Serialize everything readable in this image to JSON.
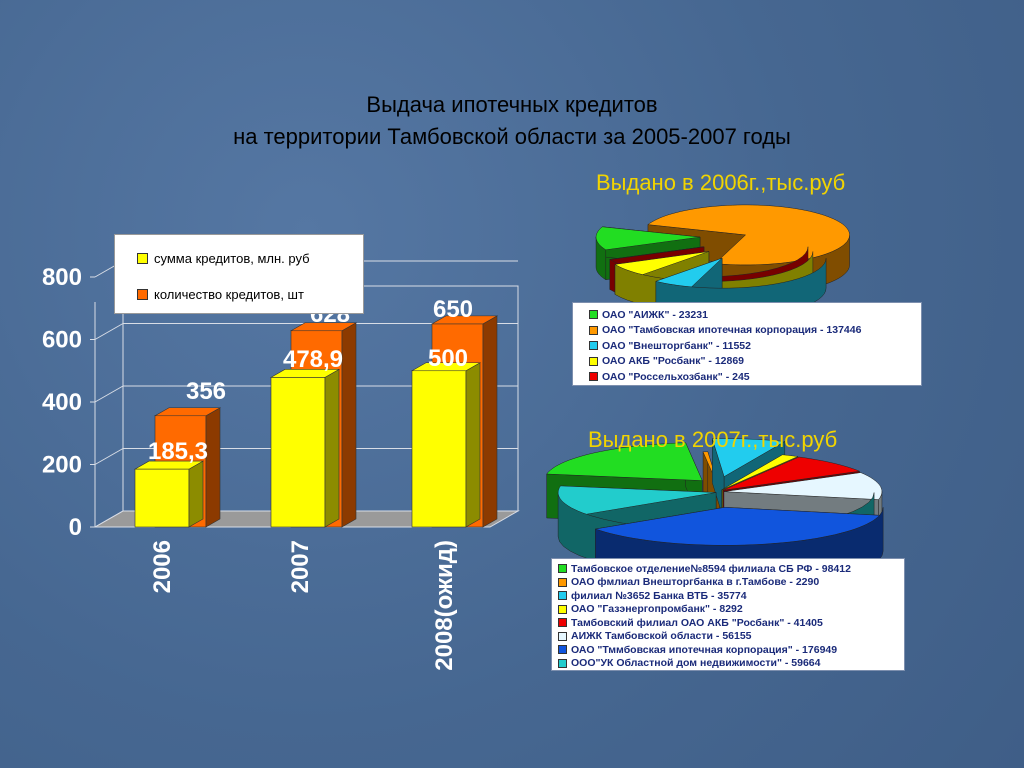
{
  "title": {
    "line1": "Выдача ипотечных кредитов",
    "line2": "на территории Тамбовской области за 2005-2007 годы"
  },
  "chart_data": [
    {
      "type": "bar",
      "categories": [
        "2006",
        "2007",
        "2008(ожид)"
      ],
      "series": [
        {
          "name": "сумма кредитов, млн. руб",
          "values": [
            185.3,
            478.9,
            500
          ],
          "labels": [
            "185,3",
            "478,9",
            "500"
          ],
          "color": "#ffff00"
        },
        {
          "name": "количество кредитов, шт",
          "values": [
            356,
            628,
            650
          ],
          "labels": [
            "356",
            "628",
            "650"
          ],
          "color": "#ff6a00"
        }
      ],
      "yticks": [
        "0",
        "200",
        "400",
        "600",
        "800"
      ],
      "ylim": [
        0,
        800
      ],
      "legend_position": "top"
    },
    {
      "type": "pie",
      "title": "Выдано в 2006г.,тыс.руб",
      "slices": [
        {
          "label": "ОАО \"АИЖК\" - 23231",
          "value": 23231,
          "color": "#22dd22"
        },
        {
          "label": "ОАО \"Тамбовская ипотечная корпорация - 137446",
          "value": 137446,
          "color": "#ff9900"
        },
        {
          "label": "ОАО \"Внешторгбанк\" - 11552",
          "value": 11552,
          "color": "#22ccee"
        },
        {
          "label": "ОАО АКБ \"Росбанк\" - 12869",
          "value": 12869,
          "color": "#ffff00"
        },
        {
          "label": "ОАО \"Россельхозбанк\" - 245",
          "value": 245,
          "color": "#ee0000"
        }
      ]
    },
    {
      "type": "pie",
      "title": "Выдано в 2007г.,тыс.руб",
      "slices": [
        {
          "label": "Тамбовское отделение№8594 филиала СБ РФ - 98412",
          "value": 98412,
          "color": "#22dd22"
        },
        {
          "label": "ОАО фмлиал Внешторгбанка в г.Тамбове - 2290",
          "value": 2290,
          "color": "#ff9900"
        },
        {
          "label": "филиал №3652 Банка ВТБ - 35774",
          "value": 35774,
          "color": "#22ccee"
        },
        {
          "label": "ОАО \"Газэнергопромбанк\" - 8292",
          "value": 8292,
          "color": "#ffff00"
        },
        {
          "label": "Тамбовский филиал ОАО АКБ \"Росбанк\" - 41405",
          "value": 41405,
          "color": "#ee0000"
        },
        {
          "label": "АИЖК Тамбовской области - 56155",
          "value": 56155,
          "color": "#e6f7ff"
        },
        {
          "label": "ОАО \"Тммбовская ипотечная корпорация\" - 176949",
          "value": 176949,
          "color": "#1155dd"
        },
        {
          "label": "ООО\"УК Областной дом недвижимости\" - 59664",
          "value": 59664,
          "color": "#22cccc"
        }
      ]
    }
  ]
}
